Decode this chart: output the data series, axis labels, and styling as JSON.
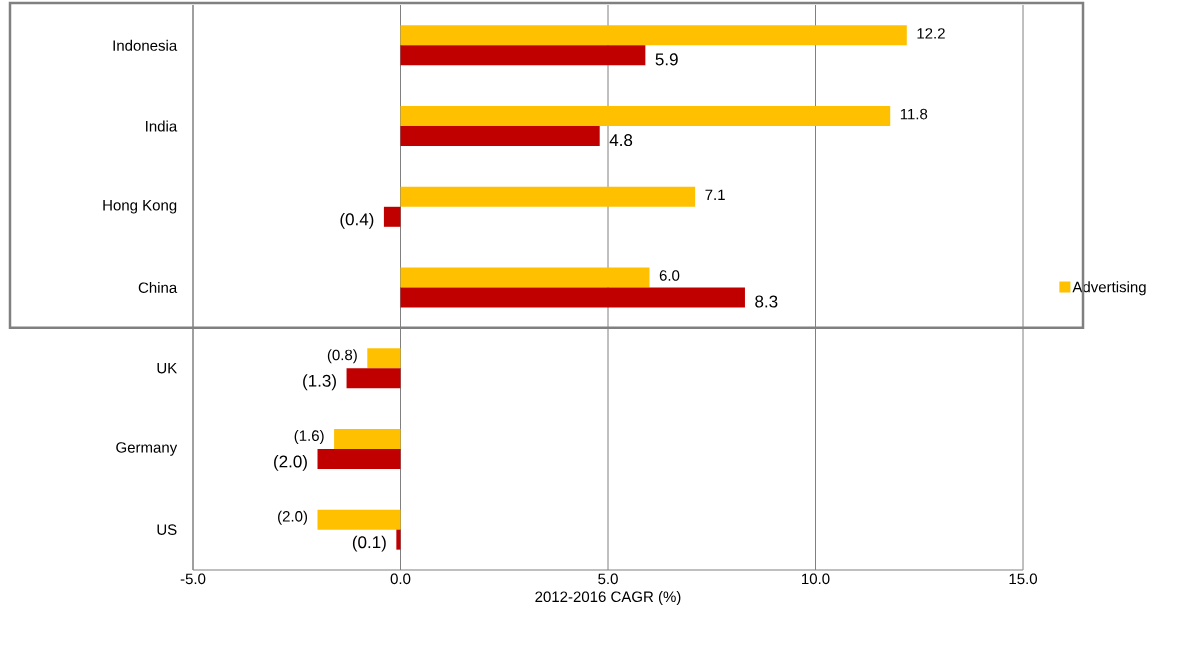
{
  "chart_data": {
    "type": "bar",
    "orientation": "horizontal",
    "xlabel": "2012-2016 CAGR (%)",
    "categories": [
      "Indonesia",
      "India",
      "Hong Kong",
      "China",
      "UK",
      "Germany",
      "US"
    ],
    "series": [
      {
        "name": "Advertising",
        "color": "#ffc000",
        "values": [
          12.2,
          11.8,
          7.1,
          6.0,
          -0.8,
          -1.6,
          -2.0
        ],
        "value_labels": [
          "12.2",
          "11.8",
          "7.1",
          "6.0",
          "(0.8)",
          "(1.6)",
          "(2.0)"
        ]
      },
      {
        "color": "#c00000",
        "values": [
          5.9,
          4.8,
          -0.4,
          8.3,
          -1.3,
          -2.0,
          -0.1
        ],
        "value_labels": [
          "5.9",
          "4.8",
          "(0.4)",
          "8.3",
          "(1.3)",
          "(2.0)",
          "(0.1)"
        ]
      }
    ],
    "xlim": [
      -5,
      15
    ],
    "xticks": [
      {
        "value": -5,
        "label": "-5.0"
      },
      {
        "value": 0,
        "label": "0.0"
      },
      {
        "value": 5,
        "label": "5.0"
      },
      {
        "value": 10,
        "label": "10.0"
      },
      {
        "value": 15,
        "label": "15.0"
      }
    ],
    "grid": "x",
    "legend": "right"
  }
}
